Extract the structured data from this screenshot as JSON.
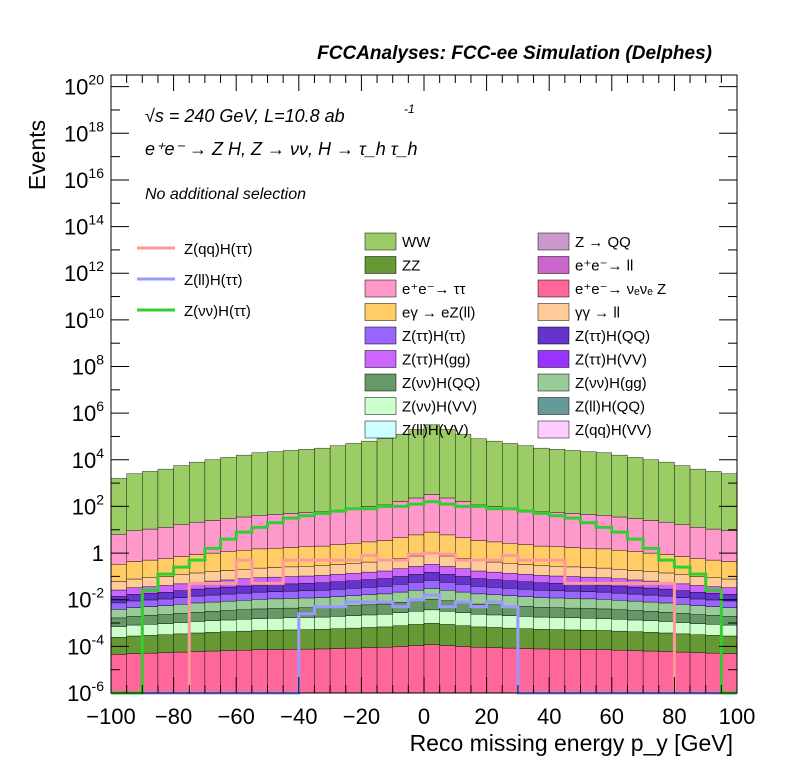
{
  "header": "FCCAnalyses: FCC-ee Simulation (Delphes)",
  "annotations": {
    "sqrt_s": "√s = 240 GeV, L=10.8 ab",
    "lumi_exp": "-1",
    "process": "e⁺e⁻ → Z H, Z → νν, H → τ_h τ_h",
    "selection": "No additional selection"
  },
  "chart_data": {
    "type": "histogram",
    "xlabel": "Reco missing energy p_y [GeV]",
    "ylabel": "Events",
    "xlim": [
      -100,
      100
    ],
    "ylim_log10": [
      -6,
      20.5
    ],
    "y_scale": "log",
    "x_ticks": [
      "−100",
      "−80",
      "−60",
      "−40",
      "−20",
      "0",
      "20",
      "40",
      "60",
      "80",
      "100"
    ],
    "y_ticks": [
      "10^-6",
      "10^-4",
      "10^-2",
      "1",
      "10^2",
      "10^4",
      "10^6",
      "10^8",
      "10^10",
      "10^12",
      "10^14",
      "10^16",
      "10^18",
      "10^20"
    ],
    "bin_width": 5,
    "stack_totals_log10_by_bin": [
      3.2,
      3.4,
      3.5,
      3.6,
      3.75,
      3.9,
      4.0,
      4.1,
      4.2,
      4.3,
      4.35,
      4.4,
      4.45,
      4.5,
      4.6,
      4.7,
      4.8,
      4.9,
      5.1,
      5.3,
      5.5,
      5.3,
      5.1,
      4.9,
      4.8,
      4.7,
      4.6,
      4.5,
      4.45,
      4.4,
      4.35,
      4.3,
      4.2,
      4.1,
      4.0,
      3.9,
      3.75,
      3.6,
      3.5,
      3.4
    ],
    "stacked_legend": [
      {
        "label": "WW",
        "color": "#9ccc65"
      },
      {
        "label": "Z → QQ",
        "color": "#cc99cc"
      },
      {
        "label": "ZZ",
        "color": "#669933"
      },
      {
        "label": "e⁺e⁻→ ll",
        "color": "#cc66cc"
      },
      {
        "label": "e⁺e⁻→ ττ",
        "color": "#ff99cc"
      },
      {
        "label": "e⁺e⁻→ νₑνₑ Z",
        "color": "#ff6699"
      },
      {
        "label": "eγ → eZ(ll)",
        "color": "#ffcc66"
      },
      {
        "label": "γγ → ll",
        "color": "#ffcc99"
      },
      {
        "label": "Z(ττ)H(ττ)",
        "color": "#9966ff"
      },
      {
        "label": "Z(ττ)H(QQ)",
        "color": "#6633cc"
      },
      {
        "label": "Z(ττ)H(gg)",
        "color": "#cc66ff"
      },
      {
        "label": "Z(ττ)H(VV)",
        "color": "#9933ff"
      },
      {
        "label": "Z(νν)H(QQ)",
        "color": "#669966"
      },
      {
        "label": "Z(νν)H(gg)",
        "color": "#99cc99"
      },
      {
        "label": "Z(νν)H(VV)",
        "color": "#ccffcc"
      },
      {
        "label": "Z(ll)H(QQ)",
        "color": "#669999"
      },
      {
        "label": "Z(ll)H(VV)",
        "color": "#ccffff"
      },
      {
        "label": "Z(qq)H(VV)",
        "color": "#ffccff"
      }
    ],
    "signal_legend": [
      {
        "label": "Z(qq)H(ττ)",
        "color": "#ff9999"
      },
      {
        "label": "Z(ll)H(ττ)",
        "color": "#9999ff"
      },
      {
        "label": "Z(νν)H(ττ)",
        "color": "#33cc33"
      }
    ],
    "signal_series_log10": {
      "Z(qq)H(ττ)": [
        -6.5,
        -6.5,
        -6.5,
        -6.5,
        -6.5,
        -1.3,
        -1.3,
        -1.3,
        -0.3,
        -1.3,
        -1.3,
        -0.3,
        -0.3,
        -0.3,
        -0.3,
        -0.3,
        -0.1,
        -0.3,
        -0.3,
        -0.05,
        0.0,
        -0.05,
        -0.3,
        -0.3,
        -0.3,
        -0.1,
        -0.3,
        -0.3,
        -0.3,
        -1.3,
        -1.3,
        -1.3,
        -1.3,
        -1.3,
        -1.3,
        -1.3,
        -6.5,
        -6.5,
        -6.5,
        -6.5
      ],
      "Z(ll)H(ττ)": [
        -6.5,
        -6.5,
        -6.5,
        -6.5,
        -6.5,
        -6.5,
        -6.5,
        -6.5,
        -6.5,
        -6.5,
        -6.5,
        -6.5,
        -2.6,
        -2.3,
        -2.3,
        -2.1,
        -2.1,
        -2.1,
        -2.3,
        -2.0,
        -1.8,
        -2.3,
        -2.1,
        -2.3,
        -2.1,
        -2.3,
        -6.5,
        -6.5,
        -6.5,
        -6.5,
        -6.5,
        -6.5,
        -6.5,
        -6.5,
        -6.5,
        -6.5,
        -6.5,
        -6.5,
        -6.5,
        -6.5
      ],
      "Z(νν)H(ττ)": [
        -6.5,
        -6.5,
        -1.6,
        -0.9,
        -0.6,
        -0.3,
        0.2,
        0.6,
        0.9,
        1.1,
        1.3,
        1.5,
        1.6,
        1.7,
        1.8,
        1.9,
        1.9,
        2.0,
        2.0,
        2.1,
        2.2,
        2.1,
        2.0,
        2.0,
        1.9,
        1.9,
        1.8,
        1.7,
        1.6,
        1.5,
        1.3,
        1.1,
        0.9,
        0.6,
        0.2,
        -0.3,
        -0.6,
        -0.9,
        -1.6,
        -6.5
      ]
    }
  }
}
